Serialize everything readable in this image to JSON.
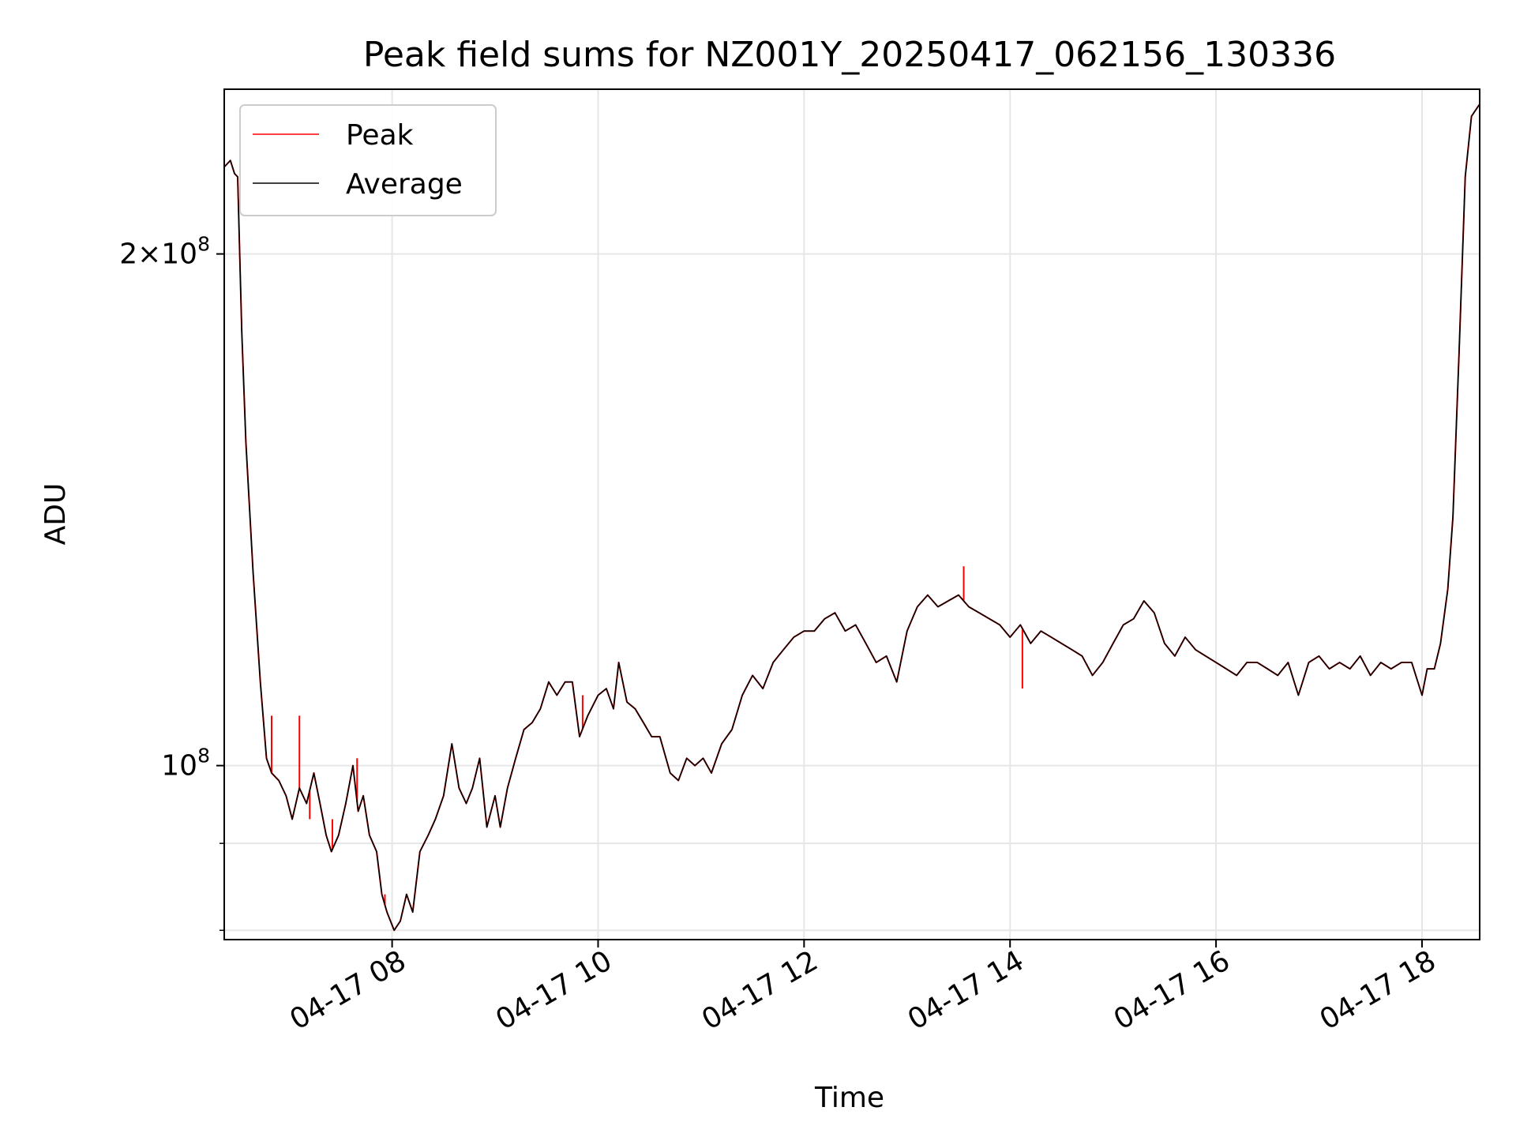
{
  "chart_data": {
    "type": "line",
    "title": "Peak field sums for NZ001Y_20250417_062156_130336",
    "xlabel": "Time",
    "ylabel": "ADU",
    "yscale": "log",
    "xlim": [
      6.37,
      18.56
    ],
    "ylim": [
      79000000,
      250000000
    ],
    "grid": true,
    "legend_position": "top-left",
    "x_ticks": [
      {
        "value": 8,
        "label": "04-17 08"
      },
      {
        "value": 10,
        "label": "04-17 10"
      },
      {
        "value": 12,
        "label": "04-17 12"
      },
      {
        "value": 14,
        "label": "04-17 14"
      },
      {
        "value": 16,
        "label": "04-17 16"
      },
      {
        "value": 18,
        "label": "04-17 18"
      }
    ],
    "y_ticks": [
      {
        "value": 100000000,
        "base": "10",
        "exp": "8",
        "mult": ""
      },
      {
        "value": 200000000,
        "base": "10",
        "exp": "8",
        "mult": "2×"
      }
    ],
    "y_minor_ticks": [
      80000000,
      90000000
    ],
    "series": [
      {
        "name": "Peak",
        "color": "#ff0000",
        "spikes": [
          [
            6.83,
            107000000
          ],
          [
            7.1,
            107000000
          ],
          [
            7.2,
            93000000
          ],
          [
            7.42,
            93000000
          ],
          [
            7.66,
            101000000
          ],
          [
            7.93,
            84000000
          ],
          [
            8.25,
            87000000
          ],
          [
            9.85,
            110000000
          ],
          [
            13.55,
            131000000
          ],
          [
            14.12,
            111000000
          ]
        ]
      },
      {
        "name": "Average",
        "color": "#000000",
        "points": [
          [
            6.37,
            225000000
          ],
          [
            6.43,
            227000000
          ],
          [
            6.47,
            223000000
          ],
          [
            6.5,
            222000000
          ],
          [
            6.54,
            180000000
          ],
          [
            6.58,
            155000000
          ],
          [
            6.65,
            130000000
          ],
          [
            6.72,
            112000000
          ],
          [
            6.78,
            101000000
          ],
          [
            6.83,
            99000000
          ],
          [
            6.9,
            98000000
          ],
          [
            6.97,
            96000000
          ],
          [
            7.03,
            93000000
          ],
          [
            7.1,
            97000000
          ],
          [
            7.17,
            95000000
          ],
          [
            7.24,
            99000000
          ],
          [
            7.3,
            95000000
          ],
          [
            7.36,
            91000000
          ],
          [
            7.41,
            89000000
          ],
          [
            7.48,
            91000000
          ],
          [
            7.55,
            95000000
          ],
          [
            7.62,
            100000000
          ],
          [
            7.67,
            94000000
          ],
          [
            7.72,
            96000000
          ],
          [
            7.78,
            91000000
          ],
          [
            7.85,
            89000000
          ],
          [
            7.9,
            84000000
          ],
          [
            7.95,
            82000000
          ],
          [
            8.02,
            80000000
          ],
          [
            8.08,
            81000000
          ],
          [
            8.14,
            84000000
          ],
          [
            8.2,
            82000000
          ],
          [
            8.27,
            89000000
          ],
          [
            8.35,
            91000000
          ],
          [
            8.42,
            93000000
          ],
          [
            8.5,
            96000000
          ],
          [
            8.58,
            103000000
          ],
          [
            8.65,
            97000000
          ],
          [
            8.72,
            95000000
          ],
          [
            8.78,
            97000000
          ],
          [
            8.85,
            101000000
          ],
          [
            8.92,
            92000000
          ],
          [
            9.0,
            96000000
          ],
          [
            9.05,
            92000000
          ],
          [
            9.12,
            97000000
          ],
          [
            9.2,
            101000000
          ],
          [
            9.28,
            105000000
          ],
          [
            9.36,
            106000000
          ],
          [
            9.44,
            108000000
          ],
          [
            9.52,
            112000000
          ],
          [
            9.6,
            110000000
          ],
          [
            9.68,
            112000000
          ],
          [
            9.75,
            112000000
          ],
          [
            9.82,
            104000000
          ],
          [
            9.9,
            107000000
          ],
          [
            10.0,
            110000000
          ],
          [
            10.08,
            111000000
          ],
          [
            10.15,
            108000000
          ],
          [
            10.2,
            115000000
          ],
          [
            10.28,
            109000000
          ],
          [
            10.36,
            108000000
          ],
          [
            10.44,
            106000000
          ],
          [
            10.52,
            104000000
          ],
          [
            10.6,
            104000000
          ],
          [
            10.7,
            99000000
          ],
          [
            10.78,
            98000000
          ],
          [
            10.86,
            101000000
          ],
          [
            10.94,
            100000000
          ],
          [
            11.02,
            101000000
          ],
          [
            11.1,
            99000000
          ],
          [
            11.2,
            103000000
          ],
          [
            11.3,
            105000000
          ],
          [
            11.4,
            110000000
          ],
          [
            11.5,
            113000000
          ],
          [
            11.6,
            111000000
          ],
          [
            11.7,
            115000000
          ],
          [
            11.8,
            117000000
          ],
          [
            11.9,
            119000000
          ],
          [
            12.0,
            120000000
          ],
          [
            12.1,
            120000000
          ],
          [
            12.2,
            122000000
          ],
          [
            12.3,
            123000000
          ],
          [
            12.4,
            120000000
          ],
          [
            12.5,
            121000000
          ],
          [
            12.6,
            118000000
          ],
          [
            12.7,
            115000000
          ],
          [
            12.8,
            116000000
          ],
          [
            12.9,
            112000000
          ],
          [
            13.0,
            120000000
          ],
          [
            13.1,
            124000000
          ],
          [
            13.2,
            126000000
          ],
          [
            13.3,
            124000000
          ],
          [
            13.4,
            125000000
          ],
          [
            13.5,
            126000000
          ],
          [
            13.6,
            124000000
          ],
          [
            13.7,
            123000000
          ],
          [
            13.8,
            122000000
          ],
          [
            13.9,
            121000000
          ],
          [
            14.0,
            119000000
          ],
          [
            14.1,
            121000000
          ],
          [
            14.2,
            118000000
          ],
          [
            14.3,
            120000000
          ],
          [
            14.4,
            119000000
          ],
          [
            14.5,
            118000000
          ],
          [
            14.6,
            117000000
          ],
          [
            14.7,
            116000000
          ],
          [
            14.8,
            113000000
          ],
          [
            14.9,
            115000000
          ],
          [
            15.0,
            118000000
          ],
          [
            15.1,
            121000000
          ],
          [
            15.2,
            122000000
          ],
          [
            15.3,
            125000000
          ],
          [
            15.4,
            123000000
          ],
          [
            15.5,
            118000000
          ],
          [
            15.6,
            116000000
          ],
          [
            15.7,
            119000000
          ],
          [
            15.8,
            117000000
          ],
          [
            15.9,
            116000000
          ],
          [
            16.0,
            115000000
          ],
          [
            16.1,
            114000000
          ],
          [
            16.2,
            113000000
          ],
          [
            16.3,
            115000000
          ],
          [
            16.4,
            115000000
          ],
          [
            16.5,
            114000000
          ],
          [
            16.6,
            113000000
          ],
          [
            16.7,
            115000000
          ],
          [
            16.8,
            110000000
          ],
          [
            16.9,
            115000000
          ],
          [
            17.0,
            116000000
          ],
          [
            17.1,
            114000000
          ],
          [
            17.2,
            115000000
          ],
          [
            17.3,
            114000000
          ],
          [
            17.4,
            116000000
          ],
          [
            17.5,
            113000000
          ],
          [
            17.6,
            115000000
          ],
          [
            17.7,
            114000000
          ],
          [
            17.8,
            115000000
          ],
          [
            17.9,
            115000000
          ],
          [
            18.0,
            110000000
          ],
          [
            18.05,
            114000000
          ],
          [
            18.12,
            114000000
          ],
          [
            18.18,
            118000000
          ],
          [
            18.25,
            127000000
          ],
          [
            18.3,
            140000000
          ],
          [
            18.36,
            175000000
          ],
          [
            18.42,
            222000000
          ],
          [
            18.48,
            241000000
          ],
          [
            18.54,
            244000000
          ],
          [
            18.56,
            245000000
          ]
        ]
      }
    ]
  }
}
